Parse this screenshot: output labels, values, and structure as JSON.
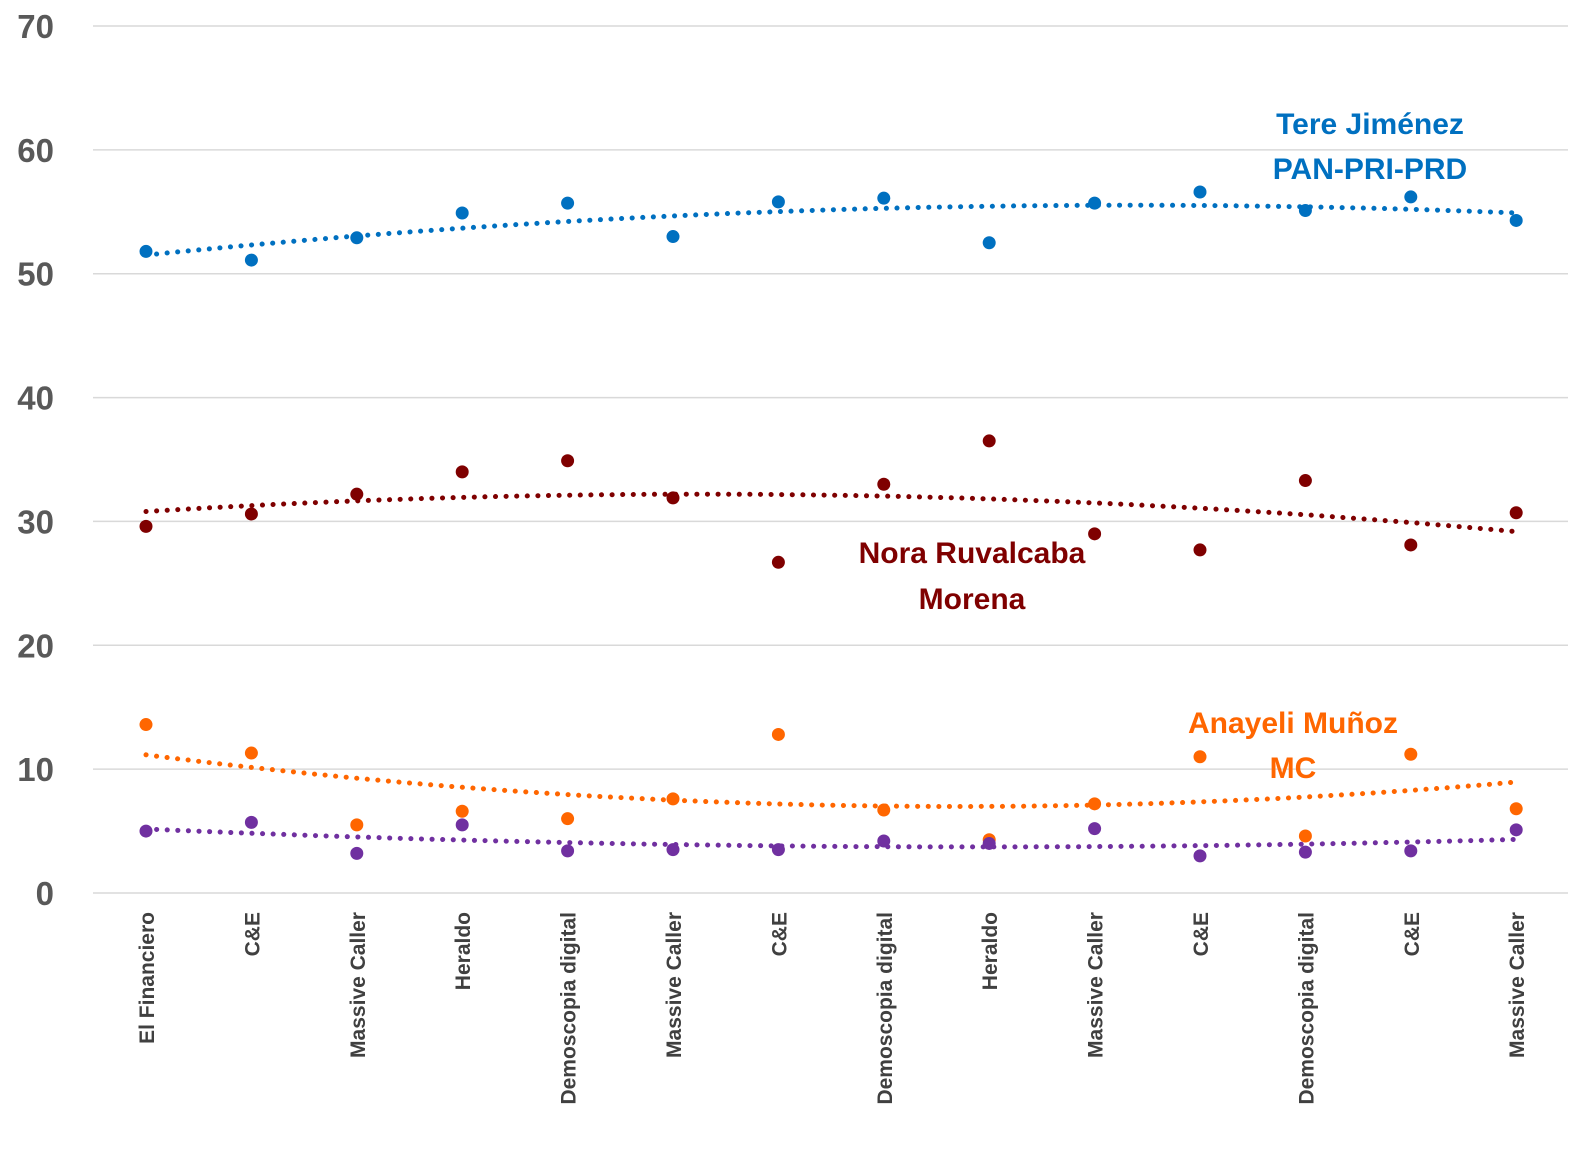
{
  "chart_data": {
    "type": "scatter",
    "categories": [
      "El Financiero",
      "C&E",
      "Massive Caller",
      "Heraldo",
      "Demoscopia digital",
      "Massive Caller",
      "C&E",
      "Demoscopia digital",
      "Heraldo",
      "Massive Caller",
      "C&E",
      "Demoscopia digital",
      "C&E",
      "Massive Caller"
    ],
    "ylim": [
      0,
      70
    ],
    "yticks": [
      0,
      10,
      20,
      30,
      40,
      50,
      60,
      70
    ],
    "grid": true,
    "series": [
      {
        "color": "#0070C0",
        "values": [
          51.8,
          51.1,
          52.9,
          54.9,
          55.7,
          53.0,
          55.8,
          56.1,
          52.5,
          55.7,
          56.6,
          55.1,
          56.2,
          54.3
        ],
        "trend": "polynomial"
      },
      {
        "color": "#7F0000",
        "values": [
          29.6,
          30.6,
          32.2,
          34.0,
          34.9,
          31.9,
          26.7,
          33.0,
          36.5,
          29.0,
          27.7,
          33.3,
          28.1,
          30.7
        ],
        "trend": "polynomial"
      },
      {
        "color": "#FF6600",
        "values": [
          13.6,
          11.3,
          5.5,
          6.6,
          6.0,
          7.6,
          12.8,
          6.7,
          4.3,
          7.2,
          11.0,
          4.6,
          11.2,
          6.8
        ],
        "trend": "polynomial"
      },
      {
        "color": "#7030A0",
        "values": [
          5.0,
          5.7,
          3.2,
          5.5,
          3.4,
          3.5,
          3.5,
          4.2,
          4.0,
          5.2,
          3.0,
          3.3,
          3.4,
          5.1
        ],
        "trend": "polynomial"
      }
    ],
    "annotations": [
      {
        "lines": [
          "Tere Jiménez",
          "PAN-PRI-PRD"
        ],
        "color": "#0070C0"
      },
      {
        "lines": [
          "Nora Ruvalcaba",
          "Morena"
        ],
        "color": "#7F0000"
      },
      {
        "lines": [
          "Anayeli Muñoz",
          "MC"
        ],
        "color": "#FF6600"
      }
    ]
  }
}
